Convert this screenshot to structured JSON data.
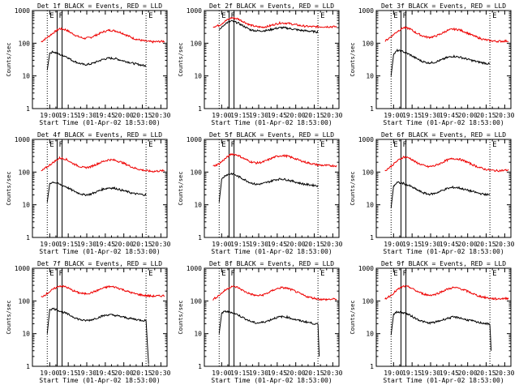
{
  "figure": {
    "x_axis_label": "Start Time (01-Apr-02 18:53:00)",
    "y_axis_label": "Counts/sec",
    "x_tick_labels": [
      "19:00",
      "19:15",
      "19:30",
      "19:45",
      "20:00",
      "20:15",
      "20:30"
    ],
    "y_tick_labels": [
      "1",
      "10",
      "100",
      "1000"
    ],
    "marker_labels": [
      "E",
      "F",
      "E"
    ]
  },
  "colors": {
    "events": "#000000",
    "lld": "#ee0000",
    "axes": "#000000"
  },
  "chart_data": [
    {
      "type": "line",
      "title": "Det 1f BLACK = Events, RED = LLD",
      "xlabel": "Start Time (01-Apr-02 18:53:00)",
      "ylabel": "Counts/sec",
      "yscale": "log",
      "ylim": [
        1,
        1000
      ],
      "xlim_min_after_start": [
        -7,
        102
      ],
      "vlines_min": {
        "dotted": [
          5,
          85
        ],
        "solid": [
          13,
          17
        ]
      },
      "series": [
        {
          "name": "LLD",
          "color": "#ee0000",
          "x": [
            0,
            5,
            10,
            15,
            20,
            25,
            30,
            35,
            40,
            45,
            50,
            55,
            60,
            65,
            70,
            75,
            80,
            85,
            90,
            95,
            100
          ],
          "values": [
            110,
            150,
            210,
            280,
            260,
            200,
            160,
            140,
            150,
            180,
            220,
            250,
            240,
            210,
            170,
            140,
            125,
            115,
            110,
            112,
            115
          ]
        },
        {
          "name": "Events",
          "color": "#000000",
          "x": [
            5,
            7,
            10,
            15,
            20,
            25,
            30,
            35,
            40,
            45,
            50,
            55,
            60,
            65,
            70,
            75,
            80,
            85
          ],
          "values": [
            15,
            50,
            55,
            45,
            40,
            30,
            25,
            22,
            23,
            27,
            32,
            35,
            34,
            30,
            27,
            24,
            22,
            20
          ]
        }
      ]
    },
    {
      "type": "line",
      "title": "Det 2f BLACK = Events, RED = LLD",
      "xlabel": "Start Time (01-Apr-02 18:53:00)",
      "ylabel": "Counts/sec",
      "yscale": "log",
      "ylim": [
        1,
        1000
      ],
      "xlim_min_after_start": [
        -7,
        102
      ],
      "vlines_min": {
        "dotted": [
          5,
          85
        ],
        "solid": [
          13,
          17
        ]
      },
      "series": [
        {
          "name": "LLD",
          "color": "#ee0000",
          "x": [
            0,
            5,
            10,
            15,
            20,
            25,
            30,
            35,
            40,
            45,
            50,
            55,
            60,
            65,
            70,
            75,
            80,
            85,
            90,
            95,
            100
          ],
          "values": [
            320,
            350,
            480,
            600,
            560,
            450,
            360,
            320,
            310,
            330,
            380,
            420,
            410,
            380,
            350,
            330,
            320,
            320,
            320,
            320,
            320
          ]
        },
        {
          "name": "Events",
          "color": "#000000",
          "x": [
            5,
            7,
            10,
            15,
            20,
            25,
            30,
            35,
            40,
            45,
            50,
            55,
            60,
            65,
            70,
            75,
            80,
            85
          ],
          "values": [
            260,
            300,
            400,
            480,
            420,
            330,
            260,
            240,
            240,
            250,
            280,
            300,
            290,
            270,
            250,
            240,
            230,
            220
          ]
        }
      ]
    },
    {
      "type": "line",
      "title": "Det 3f BLACK = Events, RED = LLD",
      "xlabel": "Start Time (01-Apr-02 18:53:00)",
      "ylabel": "Counts/sec",
      "yscale": "log",
      "ylim": [
        1,
        1000
      ],
      "xlim_min_after_start": [
        -7,
        102
      ],
      "vlines_min": {
        "dotted": [
          5,
          85
        ],
        "solid": [
          13,
          17
        ]
      },
      "series": [
        {
          "name": "LLD",
          "color": "#ee0000",
          "x": [
            0,
            5,
            10,
            15,
            20,
            25,
            30,
            35,
            40,
            45,
            50,
            55,
            60,
            65,
            70,
            75,
            80,
            85,
            90,
            95,
            100
          ],
          "values": [
            115,
            160,
            230,
            300,
            280,
            210,
            170,
            150,
            160,
            190,
            240,
            270,
            260,
            220,
            180,
            150,
            130,
            120,
            115,
            115,
            118
          ]
        },
        {
          "name": "Events",
          "color": "#000000",
          "x": [
            5,
            7,
            10,
            15,
            20,
            25,
            30,
            35,
            40,
            45,
            50,
            55,
            60,
            65,
            70,
            75,
            80,
            85
          ],
          "values": [
            10,
            45,
            60,
            55,
            45,
            35,
            28,
            25,
            26,
            30,
            36,
            40,
            38,
            34,
            30,
            27,
            25,
            23
          ]
        }
      ]
    },
    {
      "type": "line",
      "title": "Det 4f BLACK = Events, RED = LLD",
      "xlabel": "Start Time (01-Apr-02 18:53:00)",
      "ylabel": "Counts/sec",
      "yscale": "log",
      "ylim": [
        1,
        1000
      ],
      "xlim_min_after_start": [
        -7,
        102
      ],
      "vlines_min": {
        "dotted": [
          5,
          85
        ],
        "solid": [
          13,
          17
        ]
      },
      "series": [
        {
          "name": "LLD",
          "color": "#ee0000",
          "x": [
            0,
            5,
            10,
            15,
            20,
            25,
            30,
            35,
            40,
            45,
            50,
            55,
            60,
            65,
            70,
            75,
            80,
            85,
            90,
            95,
            100
          ],
          "values": [
            105,
            145,
            200,
            270,
            250,
            190,
            155,
            135,
            145,
            175,
            210,
            240,
            230,
            200,
            165,
            135,
            120,
            110,
            105,
            108,
            110
          ]
        },
        {
          "name": "Events",
          "color": "#000000",
          "x": [
            5,
            7,
            10,
            15,
            20,
            25,
            30,
            35,
            40,
            45,
            50,
            55,
            60,
            65,
            70,
            75,
            80,
            85
          ],
          "values": [
            12,
            45,
            50,
            42,
            36,
            28,
            23,
            20,
            21,
            25,
            30,
            33,
            32,
            28,
            25,
            22,
            21,
            20
          ]
        }
      ]
    },
    {
      "type": "line",
      "title": "Det 5f BLACK = Events, RED = LLD",
      "xlabel": "Start Time (01-Apr-02 18:53:00)",
      "ylabel": "Counts/sec",
      "yscale": "log",
      "ylim": [
        1,
        1000
      ],
      "xlim_min_after_start": [
        -7,
        102
      ],
      "vlines_min": {
        "dotted": [
          5,
          85
        ],
        "solid": [
          13,
          17
        ]
      },
      "series": [
        {
          "name": "LLD",
          "color": "#ee0000",
          "x": [
            0,
            5,
            10,
            15,
            20,
            25,
            30,
            35,
            40,
            45,
            50,
            55,
            60,
            65,
            70,
            75,
            80,
            85,
            90,
            95,
            100
          ],
          "values": [
            150,
            180,
            260,
            360,
            330,
            260,
            210,
            190,
            200,
            240,
            290,
            320,
            310,
            270,
            230,
            200,
            180,
            165,
            160,
            158,
            155
          ]
        },
        {
          "name": "Events",
          "color": "#000000",
          "x": [
            5,
            7,
            10,
            15,
            20,
            25,
            30,
            35,
            40,
            45,
            50,
            55,
            60,
            65,
            70,
            75,
            80,
            85
          ],
          "values": [
            12,
            60,
            80,
            90,
            75,
            60,
            48,
            42,
            44,
            50,
            58,
            62,
            58,
            52,
            46,
            42,
            40,
            38
          ]
        }
      ]
    },
    {
      "type": "line",
      "title": "Det 6f BLACK = Events, RED = LLD",
      "xlabel": "Start Time (01-Apr-02 18:53:00)",
      "ylabel": "Counts/sec",
      "yscale": "log",
      "ylim": [
        1,
        1000
      ],
      "xlim_min_after_start": [
        -7,
        102
      ],
      "vlines_min": {
        "dotted": [
          5,
          85
        ],
        "solid": [
          13,
          17
        ]
      },
      "series": [
        {
          "name": "LLD",
          "color": "#ee0000",
          "x": [
            0,
            5,
            10,
            15,
            20,
            25,
            30,
            35,
            40,
            45,
            50,
            55,
            60,
            65,
            70,
            75,
            80,
            85,
            90,
            95,
            100
          ],
          "values": [
            110,
            150,
            220,
            290,
            270,
            200,
            165,
            145,
            155,
            185,
            230,
            260,
            250,
            215,
            175,
            145,
            125,
            115,
            110,
            112,
            115
          ]
        },
        {
          "name": "Events",
          "color": "#000000",
          "x": [
            5,
            7,
            10,
            15,
            20,
            25,
            30,
            35,
            40,
            45,
            50,
            55,
            60,
            65,
            70,
            75,
            80,
            85
          ],
          "values": [
            8,
            38,
            48,
            45,
            38,
            30,
            24,
            21,
            22,
            26,
            31,
            34,
            33,
            29,
            26,
            23,
            21,
            20
          ]
        }
      ]
    },
    {
      "type": "line",
      "title": "Det 7f BLACK = Events, RED = LLD",
      "xlabel": "Start Time (01-Apr-02 18:53:00)",
      "ylabel": "Counts/sec",
      "yscale": "log",
      "ylim": [
        1,
        1000
      ],
      "xlim_min_after_start": [
        -7,
        102
      ],
      "vlines_min": {
        "dotted": [
          5,
          85
        ],
        "solid": [
          13,
          17
        ]
      },
      "series": [
        {
          "name": "LLD",
          "color": "#ee0000",
          "x": [
            0,
            5,
            10,
            15,
            20,
            25,
            30,
            35,
            40,
            45,
            50,
            55,
            60,
            65,
            70,
            75,
            80,
            85,
            90,
            95,
            100
          ],
          "values": [
            130,
            170,
            230,
            290,
            270,
            215,
            180,
            165,
            175,
            205,
            245,
            275,
            265,
            230,
            195,
            170,
            155,
            145,
            140,
            142,
            145
          ]
        },
        {
          "name": "Events",
          "color": "#000000",
          "x": [
            5,
            7,
            10,
            15,
            20,
            25,
            30,
            35,
            40,
            45,
            50,
            55,
            60,
            65,
            70,
            75,
            80,
            85,
            87
          ],
          "values": [
            10,
            55,
            58,
            50,
            42,
            34,
            28,
            25,
            26,
            30,
            35,
            38,
            36,
            33,
            30,
            28,
            26,
            25,
            1.2
          ]
        }
      ]
    },
    {
      "type": "line",
      "title": "Det 8f BLACK = Events, RED = LLD",
      "xlabel": "Start Time (01-Apr-02 18:53:00)",
      "ylabel": "Counts/sec",
      "yscale": "log",
      "ylim": [
        1,
        1000
      ],
      "xlim_min_after_start": [
        -7,
        102
      ],
      "vlines_min": {
        "dotted": [
          5,
          85
        ],
        "solid": [
          13,
          17
        ]
      },
      "series": [
        {
          "name": "LLD",
          "color": "#ee0000",
          "x": [
            0,
            5,
            10,
            15,
            20,
            25,
            30,
            35,
            40,
            45,
            50,
            55,
            60,
            65,
            70,
            75,
            80,
            85,
            90,
            95,
            100
          ],
          "values": [
            110,
            150,
            215,
            280,
            260,
            200,
            165,
            145,
            150,
            180,
            225,
            255,
            245,
            210,
            170,
            140,
            125,
            115,
            110,
            112,
            115
          ]
        },
        {
          "name": "Events",
          "color": "#000000",
          "x": [
            5,
            7,
            10,
            15,
            20,
            25,
            30,
            35,
            40,
            45,
            50,
            55,
            60,
            65,
            70,
            75,
            80,
            85,
            86
          ],
          "values": [
            10,
            42,
            48,
            45,
            38,
            30,
            24,
            21,
            22,
            25,
            30,
            33,
            32,
            28,
            25,
            23,
            21,
            19,
            2
          ]
        }
      ]
    },
    {
      "type": "line",
      "title": "Det 9f BLACK = Events, RED = LLD",
      "xlabel": "Start Time (01-Apr-02 18:53:00)",
      "ylabel": "Counts/sec",
      "yscale": "log",
      "ylim": [
        1,
        1000
      ],
      "xlim_min_after_start": [
        -7,
        102
      ],
      "vlines_min": {
        "dotted": [
          5,
          85
        ],
        "solid": [
          13,
          17
        ]
      },
      "series": [
        {
          "name": "LLD",
          "color": "#ee0000",
          "x": [
            0,
            5,
            10,
            15,
            20,
            25,
            30,
            35,
            40,
            45,
            50,
            55,
            60,
            65,
            70,
            75,
            80,
            85,
            90,
            95,
            100
          ],
          "values": [
            115,
            150,
            220,
            280,
            265,
            205,
            170,
            150,
            155,
            185,
            225,
            255,
            245,
            210,
            175,
            145,
            130,
            120,
            115,
            118,
            120
          ]
        },
        {
          "name": "Events",
          "color": "#000000",
          "x": [
            5,
            7,
            10,
            15,
            20,
            25,
            30,
            35,
            40,
            45,
            50,
            55,
            60,
            65,
            70,
            75,
            80,
            85,
            86
          ],
          "values": [
            9,
            40,
            46,
            44,
            37,
            29,
            24,
            21,
            22,
            25,
            29,
            32,
            31,
            27,
            25,
            22,
            21,
            19,
            3
          ]
        }
      ]
    }
  ]
}
